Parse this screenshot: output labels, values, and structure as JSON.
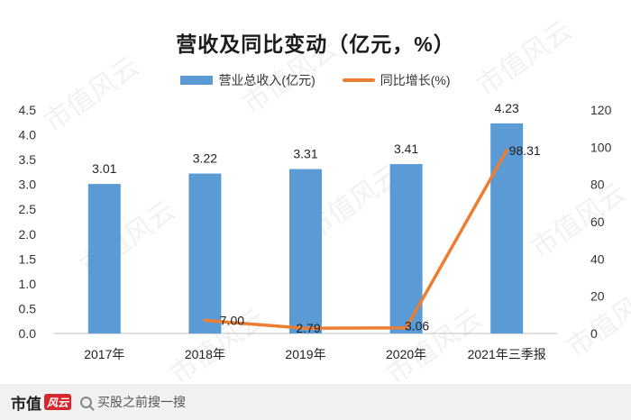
{
  "title": "营收及同比变动（亿元，%）",
  "watermark": "市值风云",
  "footer": {
    "brand": "市值",
    "brand_seal": "风云",
    "search_text": "买股之前搜一搜"
  },
  "colors": {
    "bar": "#5b9bd5",
    "line": "#ed7d31"
  },
  "chart_data": {
    "type": "bar+line",
    "title": "营收及同比变动（亿元，%）",
    "categories": [
      "2017年",
      "2018年",
      "2019年",
      "2020年",
      "2021年三季报"
    ],
    "series": [
      {
        "name": "营业总收入(亿元)",
        "type": "bar",
        "axis": "left",
        "values": [
          3.01,
          3.22,
          3.31,
          3.41,
          4.23
        ],
        "labels": [
          "3.01",
          "3.22",
          "3.31",
          "3.41",
          "4.23"
        ]
      },
      {
        "name": "同比增长(%)",
        "type": "line",
        "axis": "right",
        "values": [
          null,
          7.0,
          2.79,
          3.06,
          98.31
        ],
        "labels": [
          "",
          "7.00",
          "2.79",
          "3.06",
          "98.31"
        ]
      }
    ],
    "left_axis": {
      "min": 0,
      "max": 4.5,
      "ticks": [
        "0.0",
        "0.5",
        "1.0",
        "1.5",
        "2.0",
        "2.5",
        "3.0",
        "3.5",
        "4.0",
        "4.5"
      ]
    },
    "right_axis": {
      "min": 0,
      "max": 120,
      "ticks": [
        "0",
        "20",
        "40",
        "60",
        "80",
        "100",
        "120"
      ]
    },
    "legend_position": "top-center",
    "grid": false
  }
}
